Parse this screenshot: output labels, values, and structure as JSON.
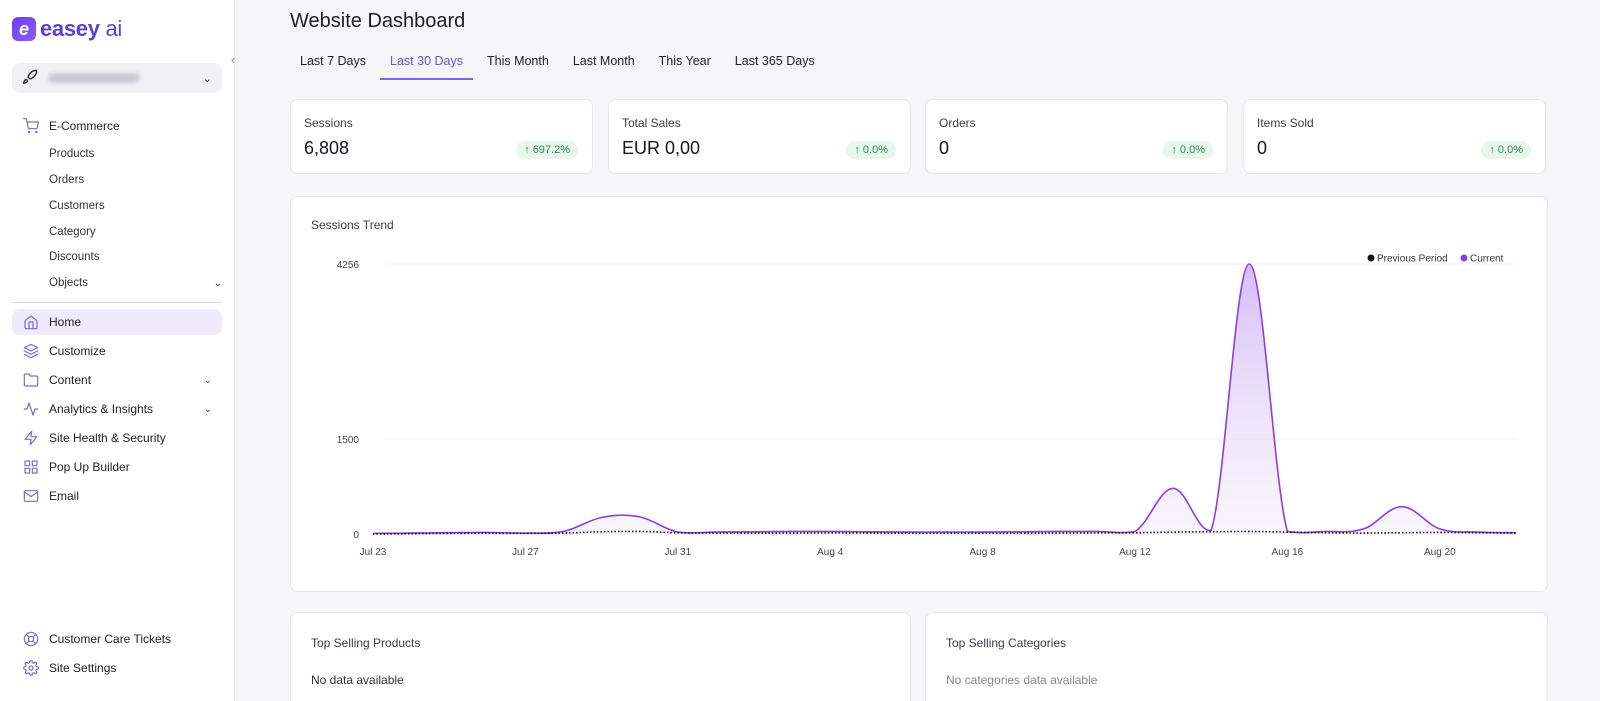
{
  "brand": {
    "name": "easey",
    "suffix": "ai",
    "mark": "e"
  },
  "site_selector": {
    "icon": "rocket-icon"
  },
  "sidebar": {
    "ecommerce": {
      "label": "E-Commerce",
      "items": [
        "Products",
        "Orders",
        "Customers",
        "Category",
        "Discounts",
        "Objects"
      ]
    },
    "nav": [
      {
        "label": "Home",
        "icon": "home-icon"
      },
      {
        "label": "Customize",
        "icon": "layers-icon"
      },
      {
        "label": "Content",
        "icon": "folder-icon"
      },
      {
        "label": "Analytics & Insights",
        "icon": "activity-icon"
      },
      {
        "label": "Site Health & Security",
        "icon": "bolt-icon"
      },
      {
        "label": "Pop Up Builder",
        "icon": "grid-icon"
      },
      {
        "label": "Email",
        "icon": "mail-icon"
      }
    ],
    "footer": [
      {
        "label": "Customer Care Tickets",
        "icon": "lifebuoy-icon"
      },
      {
        "label": "Site Settings",
        "icon": "gear-icon"
      }
    ]
  },
  "page": {
    "title": "Website Dashboard"
  },
  "tabs": [
    "Last 7 Days",
    "Last 30 Days",
    "This Month",
    "Last Month",
    "This Year",
    "Last 365 Days"
  ],
  "active_tab": "Last 30 Days",
  "stats": [
    {
      "label": "Sessions",
      "value": "6,808",
      "change": "697.2%"
    },
    {
      "label": "Total Sales",
      "value": "EUR 0,00",
      "change": "0.0%"
    },
    {
      "label": "Orders",
      "value": "0",
      "change": "0.0%"
    },
    {
      "label": "Items Sold",
      "value": "0",
      "change": "0.0%"
    }
  ],
  "chart": {
    "title": "Sessions Trend"
  },
  "chart_data": {
    "type": "area",
    "title": "Sessions Trend",
    "y_ticks": [
      "4256",
      "1500",
      "0"
    ],
    "x_ticks": [
      "Jul 23",
      "Jul 27",
      "Jul 31",
      "Aug 4",
      "Aug 8",
      "Aug 12",
      "Aug 16",
      "Aug 20"
    ],
    "legend_placement": "top-right",
    "series": [
      {
        "name": "Previous Period",
        "color": "#111111",
        "x": [
          "Jul 23",
          "Jul 24",
          "Jul 25",
          "Jul 26",
          "Jul 27",
          "Jul 28",
          "Jul 29",
          "Jul 30",
          "Jul 31",
          "Aug 1",
          "Aug 2",
          "Aug 3",
          "Aug 4",
          "Aug 5",
          "Aug 6",
          "Aug 7",
          "Aug 8",
          "Aug 9",
          "Aug 10",
          "Aug 11",
          "Aug 12",
          "Aug 13",
          "Aug 14",
          "Aug 15",
          "Aug 16",
          "Aug 17",
          "Aug 18",
          "Aug 19",
          "Aug 20",
          "Aug 21",
          "Aug 22"
        ],
        "values": [
          0,
          5,
          10,
          12,
          10,
          15,
          35,
          40,
          20,
          15,
          12,
          15,
          18,
          15,
          12,
          12,
          12,
          10,
          15,
          18,
          20,
          30,
          35,
          40,
          30,
          20,
          15,
          20,
          25,
          20,
          15
        ]
      },
      {
        "name": "Current",
        "color": "#8b3fe0",
        "x": [
          "Jul 23",
          "Jul 24",
          "Jul 25",
          "Jul 26",
          "Jul 27",
          "Jul 28",
          "Jul 29",
          "Jul 30",
          "Jul 31",
          "Aug 1",
          "Aug 2",
          "Aug 3",
          "Aug 4",
          "Aug 5",
          "Aug 6",
          "Aug 7",
          "Aug 8",
          "Aug 9",
          "Aug 10",
          "Aug 11",
          "Aug 12",
          "Aug 13",
          "Aug 14",
          "Aug 15",
          "Aug 16",
          "Aug 17",
          "Aug 18",
          "Aug 19",
          "Aug 20",
          "Aug 21",
          "Aug 22"
        ],
        "values": [
          10,
          15,
          20,
          25,
          15,
          40,
          260,
          270,
          30,
          30,
          35,
          40,
          40,
          35,
          30,
          30,
          30,
          35,
          40,
          40,
          40,
          720,
          60,
          4256,
          40,
          40,
          80,
          430,
          80,
          30,
          20
        ]
      }
    ]
  },
  "bottom": {
    "products": {
      "title": "Top Selling Products",
      "empty": "No data available"
    },
    "categories": {
      "title": "Top Selling Categories",
      "empty": "No categories data available"
    }
  }
}
